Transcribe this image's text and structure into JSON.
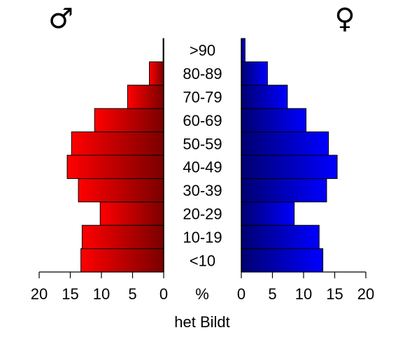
{
  "chart_data": {
    "type": "bar",
    "orientation": "horizontal",
    "subtype": "population-pyramid",
    "title": "",
    "xlabel": "het Bildt",
    "unit_label": "%",
    "categories": [
      "<10",
      "10-19",
      "20-29",
      "30-39",
      "40-49",
      "50-59",
      "60-69",
      "70-79",
      "80-89",
      ">90"
    ],
    "xlim": [
      0,
      20
    ],
    "xticks": [
      0,
      5,
      10,
      15,
      20
    ],
    "series": [
      {
        "name": "♂",
        "side": "left",
        "color_light": "#ff0000",
        "color_dark": "#7a0000",
        "values": [
          13.3,
          13.1,
          10.2,
          13.7,
          15.5,
          14.8,
          11.1,
          5.8,
          2.3,
          0.1
        ]
      },
      {
        "name": "♀",
        "side": "right",
        "color_light": "#0000ff",
        "color_dark": "#000070",
        "values": [
          13.1,
          12.5,
          8.5,
          13.7,
          15.4,
          14.0,
          10.4,
          7.4,
          4.2,
          0.6
        ]
      }
    ]
  }
}
